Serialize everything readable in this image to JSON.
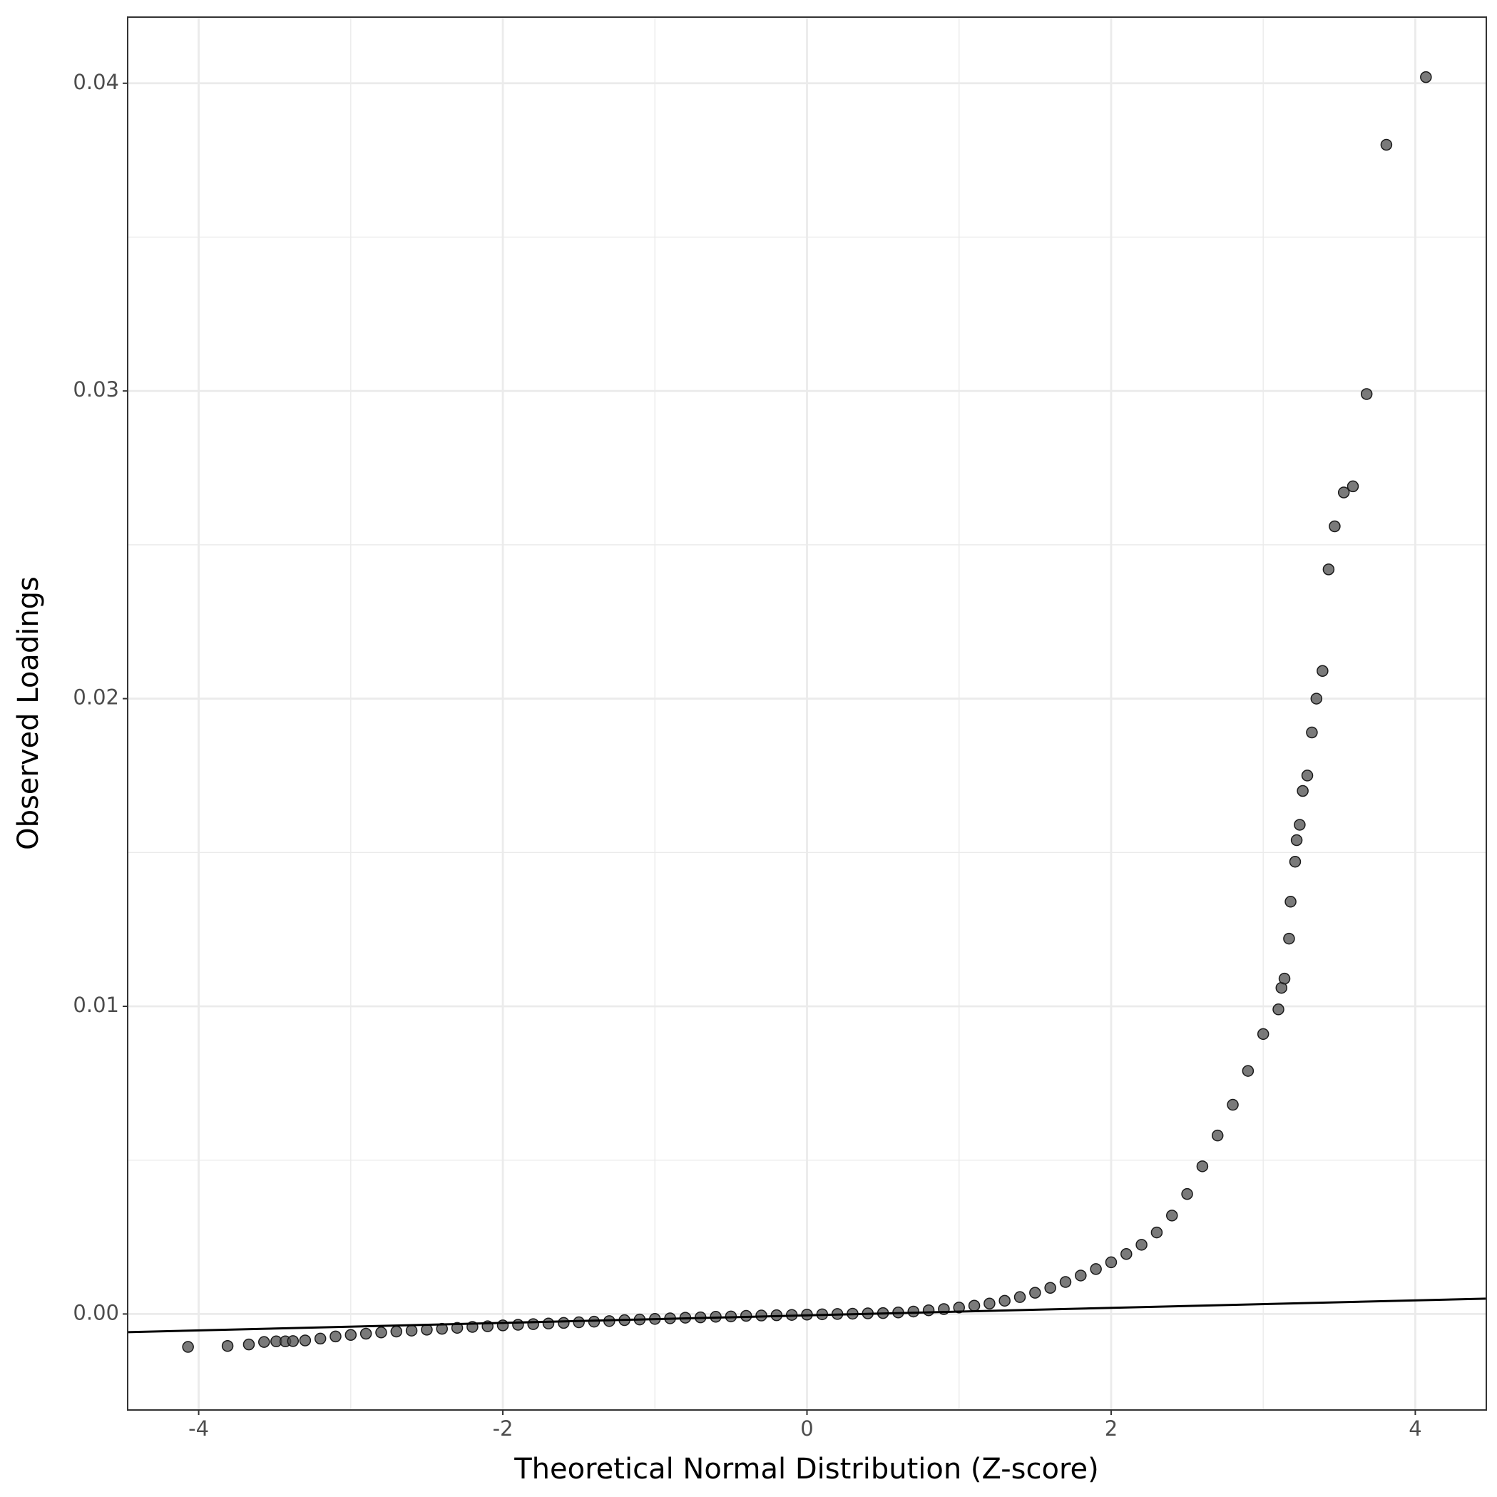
{
  "chart_data": {
    "type": "scatter",
    "x_label": "Theoretical Normal Distribution (Z-score)",
    "y_label": "Observed Loadings",
    "xlim": [
      -4.467,
      4.467
    ],
    "ylim": [
      -0.00312,
      0.04215
    ],
    "xticks": [
      -4,
      -2,
      0,
      2,
      4
    ],
    "minor_xticks": [
      -3,
      -1,
      1,
      3
    ],
    "yticks": [
      {
        "value": 0,
        "label": "0.00"
      },
      {
        "value": 0.01,
        "label": "0.01"
      },
      {
        "value": 0.02,
        "label": "0.02"
      },
      {
        "value": 0.03,
        "label": "0.03"
      },
      {
        "value": 0.04,
        "label": "0.04"
      }
    ],
    "minor_yticks": [
      0.005,
      0.015,
      0.025,
      0.035
    ],
    "grid": true,
    "series": [
      {
        "color": "#4d4d4d",
        "x": [
          -4.07,
          -3.81,
          -3.67,
          -3.57,
          -3.49,
          -3.43,
          -3.38,
          -3.3,
          -3.2,
          -3.1,
          -3.0,
          -2.9,
          -2.8,
          -2.7,
          -2.6,
          -2.5,
          -2.4,
          -2.3,
          -2.2,
          -2.1,
          -2.0,
          -1.9,
          -1.8,
          -1.7,
          -1.6,
          -1.5,
          -1.4,
          -1.3,
          -1.2,
          -1.1,
          -1.0,
          -0.9,
          -0.8,
          -0.7,
          -0.6,
          -0.5,
          -0.4,
          -0.3,
          -0.2,
          -0.1,
          0.0,
          0.1,
          0.2,
          0.3,
          0.4,
          0.5,
          0.6,
          0.7,
          0.8,
          0.9,
          1.0,
          1.1,
          1.2,
          1.3,
          1.4,
          1.5,
          1.6,
          1.7,
          1.8,
          1.9,
          2.0,
          2.1,
          2.2,
          2.3,
          2.4,
          2.5,
          2.6,
          2.7,
          2.8,
          2.9,
          3.0,
          3.1,
          3.12,
          3.14,
          3.17,
          3.18,
          3.21,
          3.22,
          3.24,
          3.26,
          3.29,
          3.32,
          3.35,
          3.39,
          3.43,
          3.47,
          3.53,
          3.59,
          3.68,
          3.81,
          4.07
        ],
        "values": [
          -0.00107,
          -0.00104,
          -0.00099,
          -0.00091,
          -0.00089,
          -0.00089,
          -0.00088,
          -0.00086,
          -0.0008,
          -0.00073,
          -0.00068,
          -0.00064,
          -0.0006,
          -0.00057,
          -0.00054,
          -0.00051,
          -0.00048,
          -0.00045,
          -0.00042,
          -0.0004,
          -0.00037,
          -0.00035,
          -0.00033,
          -0.00031,
          -0.00029,
          -0.00027,
          -0.00025,
          -0.00023,
          -0.0002,
          -0.00018,
          -0.00016,
          -0.00014,
          -0.00012,
          -0.00011,
          -9e-05,
          -8e-05,
          -6e-05,
          -5e-05,
          -4e-05,
          -3e-05,
          -2e-05,
          -1e-05,
          0,
          1e-05,
          2e-05,
          3e-05,
          5e-05,
          8e-05,
          0.00012,
          0.00016,
          0.00021,
          0.00027,
          0.00034,
          0.00043,
          0.00055,
          0.00069,
          0.00085,
          0.00104,
          0.00125,
          0.00146,
          0.00168,
          0.00195,
          0.00225,
          0.00265,
          0.0032,
          0.0039,
          0.0048,
          0.0058,
          0.0068,
          0.0079,
          0.0091,
          0.0099,
          0.0106,
          0.0109,
          0.0122,
          0.0134,
          0.0147,
          0.0154,
          0.0159,
          0.017,
          0.0175,
          0.0189,
          0.02,
          0.0209,
          0.0242,
          0.0256,
          0.0267,
          0.0269,
          0.0299,
          0.038,
          0.0402
        ]
      }
    ],
    "reference_line": {
      "color": "#000000",
      "x": [
        -4.467,
        4.467
      ],
      "values": [
        -0.00059,
        0.0005
      ]
    }
  }
}
